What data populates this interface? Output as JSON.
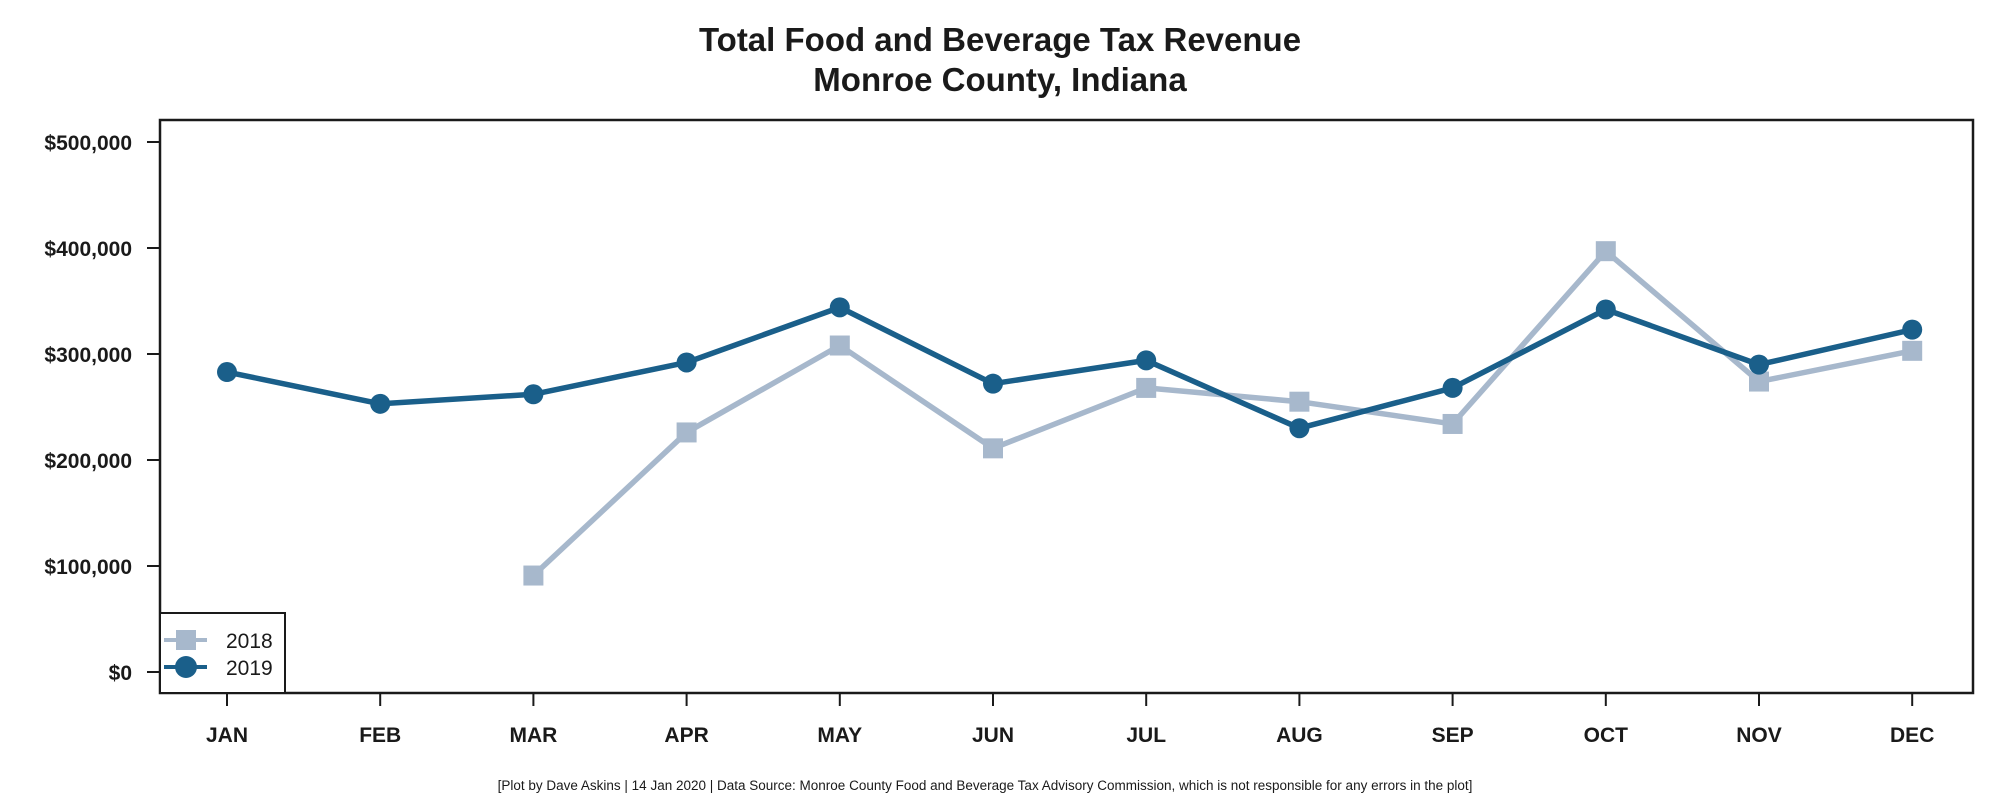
{
  "chart_data": {
    "type": "line",
    "title": "Total Food and Beverage Tax Revenue",
    "subtitle": "Monroe County, Indiana",
    "xlabel": "",
    "ylabel": "",
    "categories": [
      "JAN",
      "FEB",
      "MAR",
      "APR",
      "MAY",
      "JUN",
      "JUL",
      "AUG",
      "SEP",
      "OCT",
      "NOV",
      "DEC"
    ],
    "yticks": [
      0,
      100000,
      200000,
      300000,
      400000,
      500000
    ],
    "ytick_labels": [
      "$0",
      "$100,000",
      "$200,000",
      "$300,000",
      "$400,000",
      "$500,000"
    ],
    "ylim": [
      -20000,
      520000
    ],
    "grid": false,
    "legend_position": "bottom-left",
    "series": [
      {
        "name": "2018",
        "marker": "square",
        "color": "#a7b8cc",
        "values": [
          null,
          null,
          91000,
          226000,
          308000,
          211000,
          268000,
          255000,
          234000,
          397000,
          274000,
          303000
        ]
      },
      {
        "name": "2019",
        "marker": "circle",
        "color": "#1a5f8a",
        "values": [
          283000,
          253000,
          262000,
          292000,
          344000,
          272000,
          294000,
          230000,
          268000,
          342000,
          290000,
          323000
        ]
      }
    ],
    "footnote": "[Plot by Dave Askins | 14 Jan 2020 | Data Source: Monroe County Food and Beverage Tax Advisory Commission, which is not responsible for any errors in the plot]"
  }
}
